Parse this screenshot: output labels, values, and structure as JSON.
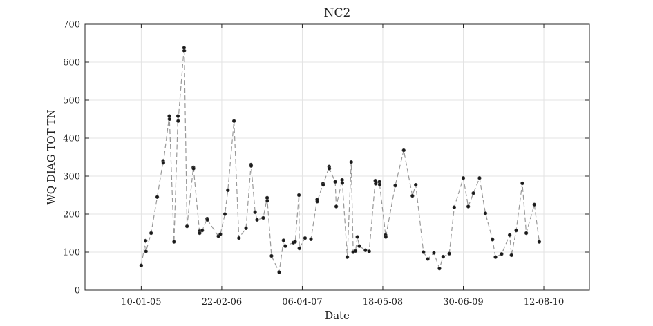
{
  "chart_data": {
    "type": "scatter",
    "title": "NC2",
    "xlabel": "Date",
    "ylabel": "WQ DIAG TOT TN",
    "ylim": [
      0,
      700
    ],
    "yticks": [
      0,
      100,
      200,
      300,
      400,
      500,
      600,
      700
    ],
    "xlim": [
      "2004-03-31",
      "2011-03-31"
    ],
    "xticks": [
      {
        "date": "2005-01-10",
        "label": "10-01-05"
      },
      {
        "date": "2006-02-22",
        "label": "22-02-06"
      },
      {
        "date": "2007-04-06",
        "label": "06-04-07"
      },
      {
        "date": "2008-05-18",
        "label": "18-05-08"
      },
      {
        "date": "2009-06-30",
        "label": "30-06-09"
      },
      {
        "date": "2010-08-12",
        "label": "12-08-10"
      }
    ],
    "grid": true,
    "line_style": "dashed",
    "line_color": "#999999",
    "marker_color": "#1a1a1a",
    "series": [
      {
        "points": [
          [
            "2005-01-10",
            65
          ],
          [
            "2005-02-01",
            130
          ],
          [
            "2005-02-03",
            102
          ],
          [
            "2005-03-01",
            150
          ],
          [
            "2005-04-01",
            245
          ],
          [
            "2005-05-01",
            340
          ],
          [
            "2005-05-02",
            335
          ],
          [
            "2005-06-01",
            458
          ],
          [
            "2005-06-02",
            450
          ],
          [
            "2005-06-25",
            127
          ],
          [
            "2005-07-15",
            458
          ],
          [
            "2005-07-16",
            445
          ],
          [
            "2005-08-15",
            638
          ],
          [
            "2005-08-16",
            630
          ],
          [
            "2005-08-30",
            168
          ],
          [
            "2005-10-01",
            323
          ],
          [
            "2005-10-02",
            320
          ],
          [
            "2005-11-01",
            155
          ],
          [
            "2005-11-02",
            150
          ],
          [
            "2005-11-15",
            157
          ],
          [
            "2005-12-10",
            188
          ],
          [
            "2005-12-11",
            185
          ],
          [
            "2006-02-05",
            142
          ],
          [
            "2006-02-15",
            147
          ],
          [
            "2006-03-10",
            200
          ],
          [
            "2006-03-25",
            263
          ],
          [
            "2006-04-25",
            445
          ],
          [
            "2006-05-20",
            137
          ],
          [
            "2006-06-25",
            163
          ],
          [
            "2006-07-20",
            330
          ],
          [
            "2006-07-21",
            327
          ],
          [
            "2006-08-10",
            205
          ],
          [
            "2006-08-20",
            185
          ],
          [
            "2006-09-20",
            190
          ],
          [
            "2006-10-10",
            243
          ],
          [
            "2006-10-11",
            235
          ],
          [
            "2006-11-01",
            90
          ],
          [
            "2006-12-10",
            47
          ],
          [
            "2007-01-01",
            131
          ],
          [
            "2007-01-10",
            116
          ],
          [
            "2007-02-20",
            125
          ],
          [
            "2007-03-01",
            127
          ],
          [
            "2007-03-20",
            250
          ],
          [
            "2007-03-22",
            110
          ],
          [
            "2007-04-20",
            137
          ],
          [
            "2007-05-20",
            134
          ],
          [
            "2007-06-20",
            238
          ],
          [
            "2007-06-21",
            233
          ],
          [
            "2007-07-20",
            280
          ],
          [
            "2007-07-21",
            277
          ],
          [
            "2007-08-20",
            325
          ],
          [
            "2007-08-21",
            320
          ],
          [
            "2007-09-20",
            285
          ],
          [
            "2007-09-25",
            220
          ],
          [
            "2007-10-25",
            290
          ],
          [
            "2007-10-26",
            282
          ],
          [
            "2007-11-20",
            87
          ],
          [
            "2007-12-10",
            337
          ],
          [
            "2007-12-20",
            100
          ],
          [
            "2008-01-01",
            103
          ],
          [
            "2008-01-10",
            140
          ],
          [
            "2008-01-20",
            116
          ],
          [
            "2008-02-20",
            105
          ],
          [
            "2008-03-10",
            102
          ],
          [
            "2008-04-10",
            288
          ],
          [
            "2008-04-12",
            280
          ],
          [
            "2008-05-01",
            285
          ],
          [
            "2008-05-02",
            278
          ],
          [
            "2008-06-01",
            145
          ],
          [
            "2008-06-02",
            140
          ],
          [
            "2008-07-20",
            275
          ],
          [
            "2008-09-01",
            368
          ],
          [
            "2008-10-15",
            248
          ],
          [
            "2008-11-01",
            277
          ],
          [
            "2008-12-10",
            100
          ],
          [
            "2009-01-01",
            82
          ],
          [
            "2009-02-01",
            98
          ],
          [
            "2009-03-01",
            57
          ],
          [
            "2009-03-20",
            88
          ],
          [
            "2009-04-20",
            96
          ],
          [
            "2009-05-15",
            218
          ],
          [
            "2009-06-30",
            295
          ],
          [
            "2009-07-25",
            220
          ],
          [
            "2009-08-20",
            255
          ],
          [
            "2009-09-20",
            295
          ],
          [
            "2009-10-20",
            202
          ],
          [
            "2009-11-25",
            133
          ],
          [
            "2009-12-10",
            87
          ],
          [
            "2010-01-10",
            95
          ],
          [
            "2010-02-20",
            145
          ],
          [
            "2010-03-01",
            92
          ],
          [
            "2010-03-25",
            157
          ],
          [
            "2010-04-25",
            281
          ],
          [
            "2010-05-15",
            150
          ],
          [
            "2010-06-25",
            225
          ],
          [
            "2010-07-20",
            127
          ]
        ]
      }
    ]
  }
}
